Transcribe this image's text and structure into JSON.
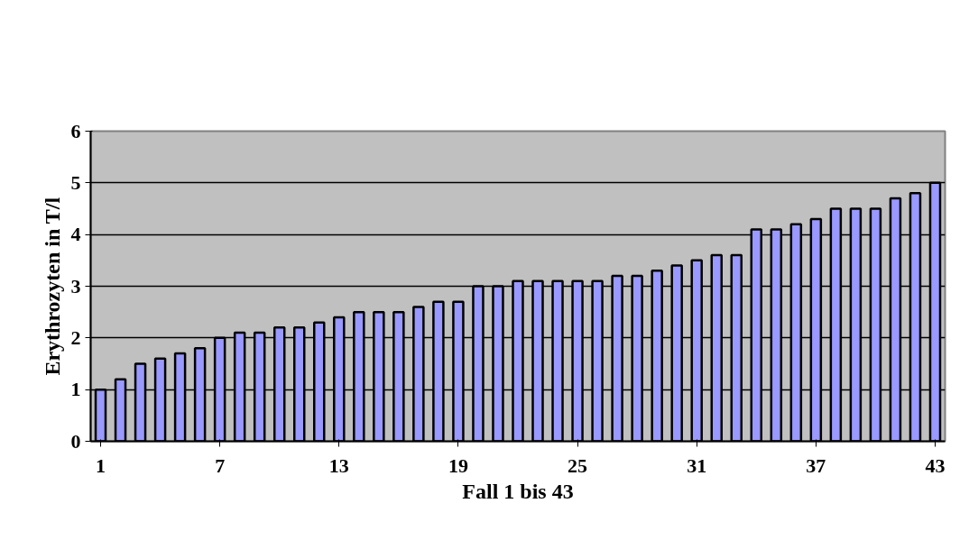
{
  "chart_data": {
    "type": "bar",
    "xlabel": "Fall 1 bis 43",
    "ylabel": "Erythrozyten in T/l",
    "x": [
      1,
      2,
      3,
      4,
      5,
      6,
      7,
      8,
      9,
      10,
      11,
      12,
      13,
      14,
      15,
      16,
      17,
      18,
      19,
      20,
      21,
      22,
      23,
      24,
      25,
      26,
      27,
      28,
      29,
      30,
      31,
      32,
      33,
      34,
      35,
      36,
      37,
      38,
      39,
      40,
      41,
      42,
      43
    ],
    "values": [
      1.0,
      1.2,
      1.5,
      1.6,
      1.7,
      1.8,
      2.0,
      2.1,
      2.1,
      2.2,
      2.2,
      2.3,
      2.4,
      2.5,
      2.5,
      2.5,
      2.6,
      2.7,
      2.7,
      3.0,
      3.0,
      3.1,
      3.1,
      3.1,
      3.1,
      3.1,
      3.2,
      3.2,
      3.3,
      3.4,
      3.5,
      3.6,
      3.6,
      4.1,
      4.1,
      4.2,
      4.3,
      4.5,
      4.5,
      4.5,
      4.7,
      4.8,
      5.0
    ],
    "color": "#9999ff",
    "xlim": [
      0.5,
      43.5
    ],
    "xticks": [
      1,
      7,
      13,
      19,
      25,
      31,
      37,
      43
    ],
    "ylim": [
      0,
      6
    ],
    "yticks": [
      0,
      1,
      2,
      3,
      4,
      5,
      6
    ],
    "grid": "y"
  }
}
